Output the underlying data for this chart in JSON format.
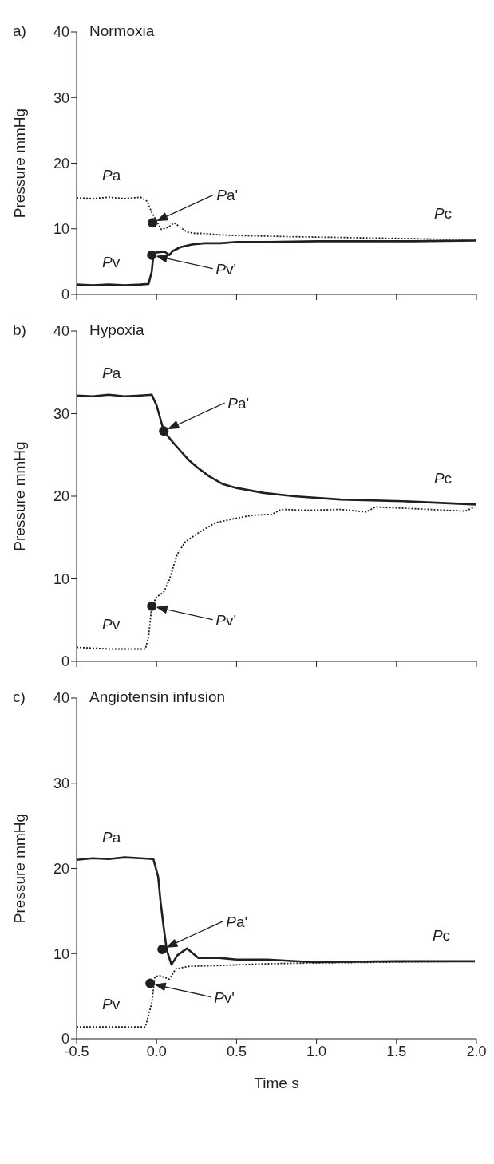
{
  "chart_data": [
    {
      "type": "line",
      "title": "Normoxia",
      "ylabel": "Pressure  mmHg",
      "xlim": [
        -0.5,
        2.0
      ],
      "xticks": [
        -0.5,
        0,
        0.5,
        1,
        1.5,
        2
      ],
      "ylim": [
        0,
        40
      ],
      "yticks": [
        0,
        10,
        20,
        30,
        40
      ],
      "tick_labels": "y",
      "marker": "none",
      "annotations": [
        "a)",
        "Pa'",
        "Pv'",
        "Pc"
      ],
      "series": [
        {
          "name": "Pa",
          "color": "#231f20",
          "line_style": "dotted",
          "x": [
            -0.5,
            -0.4,
            -0.3,
            -0.2,
            -0.1,
            -0.06,
            -0.03,
            0.03,
            0.07,
            0.11,
            0.15,
            0.19,
            0.24,
            0.29,
            0.38,
            0.47,
            0.65,
            0.85,
            1.1,
            1.34,
            1.6,
            1.8,
            2.0
          ],
          "values": [
            14.7,
            14.6,
            14.8,
            14.6,
            14.8,
            14.2,
            12.5,
            9.9,
            10.2,
            10.9,
            10.2,
            9.5,
            9.3,
            9.3,
            9.1,
            9.0,
            8.9,
            8.8,
            8.7,
            8.6,
            8.5,
            8.4,
            8.4
          ]
        },
        {
          "name": "Pv",
          "color": "#231f20",
          "line_style": "solid",
          "x": [
            -0.5,
            -0.4,
            -0.3,
            -0.2,
            -0.1,
            -0.05,
            -0.03,
            -0.02,
            0.0,
            0.05,
            0.08,
            0.1,
            0.15,
            0.22,
            0.3,
            0.4,
            0.5,
            0.7,
            1.0,
            1.3,
            1.6,
            2.0
          ],
          "values": [
            1.5,
            1.4,
            1.5,
            1.4,
            1.5,
            1.6,
            3.5,
            6.0,
            6.4,
            6.5,
            6.0,
            6.6,
            7.2,
            7.6,
            7.8,
            7.8,
            8.0,
            8.0,
            8.1,
            8.1,
            8.1,
            8.2
          ]
        },
        {
          "type": "scatter",
          "color": "#231f20",
          "marker": "circle",
          "x": [
            -0.025,
            -0.03
          ],
          "values": [
            10.9,
            6.0
          ]
        }
      ]
    },
    {
      "type": "line",
      "title": "Hypoxia",
      "ylabel": "Pressure  mmHg",
      "xlim": [
        -0.5,
        2.0
      ],
      "xticks": [
        -0.5,
        0,
        0.5,
        1,
        1.5,
        2
      ],
      "ylim": [
        0,
        40
      ],
      "yticks": [
        0,
        10,
        20,
        30,
        40
      ],
      "tick_labels": "y",
      "marker": "none",
      "annotations": [
        "b)",
        "Pa'",
        "Pv'",
        "Pc"
      ],
      "series": [
        {
          "name": "Pa",
          "color": "#231f20",
          "line_style": "solid",
          "x": [
            -0.5,
            -0.4,
            -0.3,
            -0.2,
            -0.1,
            -0.03,
            0.0,
            0.045,
            0.09,
            0.14,
            0.2,
            0.26,
            0.33,
            0.41,
            0.5,
            0.67,
            0.86,
            1.15,
            1.54,
            2.0
          ],
          "values": [
            32.2,
            32.1,
            32.3,
            32.1,
            32.2,
            32.3,
            31.0,
            27.9,
            26.8,
            25.7,
            24.4,
            23.4,
            22.4,
            21.5,
            21.0,
            20.4,
            20.0,
            19.6,
            19.4,
            19.0
          ]
        },
        {
          "name": "Pv",
          "color": "#231f20",
          "line_style": "dotted",
          "x": [
            -0.5,
            -0.3,
            -0.15,
            -0.07,
            -0.05,
            -0.03,
            0.0,
            0.045,
            0.08,
            0.13,
            0.18,
            0.28,
            0.37,
            0.49,
            0.6,
            0.72,
            0.78,
            0.95,
            1.15,
            1.31,
            1.37,
            1.6,
            1.93,
            1.99
          ],
          "values": [
            1.7,
            1.5,
            1.5,
            1.5,
            3.0,
            6.7,
            7.8,
            8.4,
            9.9,
            13.0,
            14.5,
            15.8,
            16.8,
            17.3,
            17.7,
            17.8,
            18.4,
            18.3,
            18.4,
            18.1,
            18.7,
            18.5,
            18.2,
            18.7
          ]
        },
        {
          "type": "scatter",
          "color": "#231f20",
          "marker": "circle",
          "x": [
            0.045,
            -0.03
          ],
          "values": [
            27.9,
            6.7
          ]
        }
      ]
    },
    {
      "type": "line",
      "title": "Angiotensin infusion",
      "xlabel": "Time  s",
      "ylabel": "Pressure  mmHg",
      "xlim": [
        -0.5,
        2.0
      ],
      "xticks": [
        {
          "value": -0.5,
          "label": "-0.5"
        },
        {
          "value": 0,
          "label": "0.0"
        },
        {
          "value": 0.5,
          "label": "0.5"
        },
        {
          "value": 1,
          "label": "1.0"
        },
        {
          "value": 1.5,
          "label": "1.5"
        },
        {
          "value": 2,
          "label": "2.0"
        }
      ],
      "ylim": [
        0,
        40
      ],
      "yticks": [
        0,
        10,
        20,
        30,
        40
      ],
      "marker": "none",
      "annotations": [
        "c)",
        "Pa'",
        "Pv'",
        "Pc"
      ],
      "series": [
        {
          "name": "Pa",
          "color": "#231f20",
          "line_style": "solid",
          "x": [
            -0.5,
            -0.4,
            -0.3,
            -0.2,
            -0.1,
            -0.02,
            0.01,
            0.025,
            0.045,
            0.064,
            0.093,
            0.13,
            0.19,
            0.26,
            0.39,
            0.5,
            0.69,
            0.98,
            1.5,
            1.99
          ],
          "values": [
            21.0,
            21.2,
            21.1,
            21.3,
            21.2,
            21.1,
            19.0,
            16.1,
            13.0,
            10.4,
            8.7,
            9.8,
            10.6,
            9.5,
            9.5,
            9.3,
            9.3,
            9.0,
            9.1,
            9.1
          ]
        },
        {
          "name": "Pv",
          "color": "#231f20",
          "line_style": "dotted",
          "x": [
            -0.5,
            -0.3,
            -0.15,
            -0.07,
            -0.03,
            -0.01,
            0.02,
            0.08,
            0.12,
            0.2,
            0.39,
            0.68,
            0.98,
            1.5,
            1.99
          ],
          "values": [
            1.4,
            1.4,
            1.4,
            1.4,
            4.2,
            7.3,
            7.4,
            7.0,
            8.2,
            8.5,
            8.6,
            8.8,
            8.9,
            9.0,
            9.1
          ]
        },
        {
          "type": "scatter",
          "color": "#231f20",
          "marker": "circle",
          "x": [
            0.035,
            -0.04
          ],
          "values": [
            10.5,
            6.5
          ]
        }
      ]
    }
  ]
}
